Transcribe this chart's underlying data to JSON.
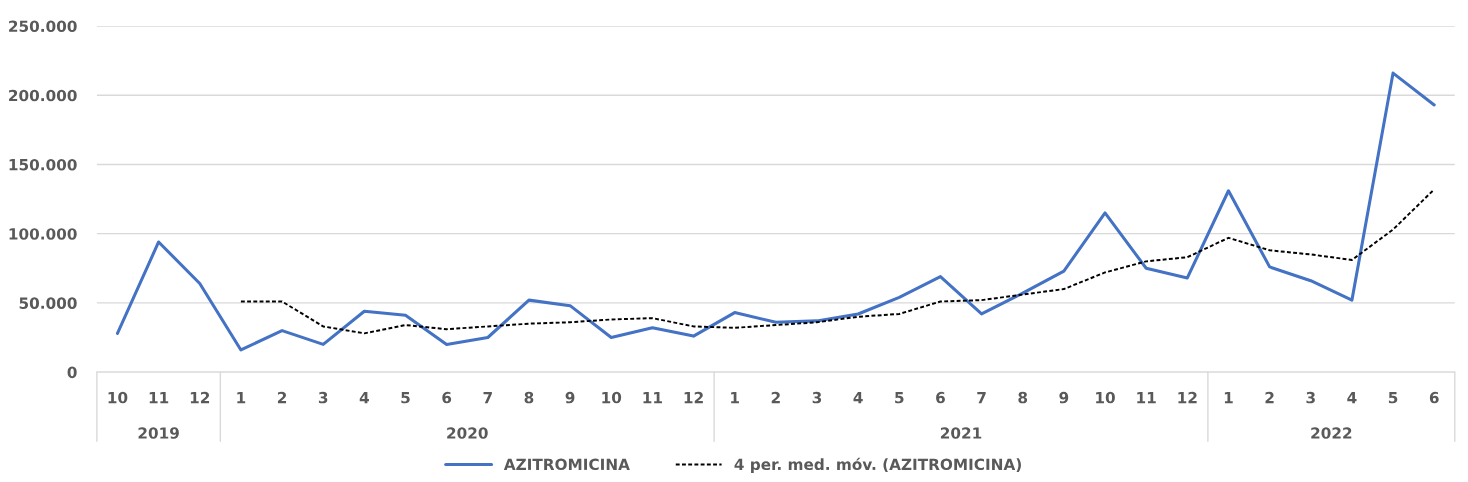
{
  "chart_data": {
    "type": "line",
    "categories": [
      "10",
      "11",
      "12",
      "1",
      "2",
      "3",
      "4",
      "5",
      "6",
      "7",
      "8",
      "9",
      "10",
      "11",
      "12",
      "1",
      "2",
      "3",
      "4",
      "5",
      "6",
      "7",
      "8",
      "9",
      "10",
      "11",
      "12",
      "1",
      "2",
      "3",
      "4",
      "5",
      "6"
    ],
    "annotations": [
      "2019",
      "2020",
      "2021",
      "2022"
    ],
    "series": [
      {
        "name": "AZITROMICINA",
        "color": "#4472c4",
        "line_style": "solid",
        "values": [
          28000,
          94000,
          64000,
          16000,
          30000,
          20000,
          44000,
          41000,
          20000,
          25000,
          52000,
          48000,
          25000,
          32000,
          26000,
          43000,
          36000,
          37000,
          42000,
          54000,
          69000,
          42000,
          57000,
          73000,
          115000,
          75000,
          68000,
          131000,
          76000,
          66000,
          52000,
          216000,
          193000
        ]
      },
      {
        "name": "4 per. med. móv. (AZITROMICINA)",
        "color": "#000000",
        "line_style": "dashed",
        "values": [
          null,
          null,
          null,
          51000,
          51000,
          33000,
          28000,
          34000,
          31000,
          33000,
          35000,
          36000,
          38000,
          39000,
          33000,
          32000,
          34000,
          36000,
          40000,
          42000,
          51000,
          52000,
          56000,
          60000,
          72000,
          80000,
          83000,
          97000,
          88000,
          85000,
          81000,
          103000,
          132000
        ]
      }
    ],
    "ylim": [
      0,
      250000
    ],
    "yticks": [
      0,
      {
        "value": 50000,
        "label": "50.000"
      },
      {
        "value": 100000,
        "label": "100.000"
      },
      {
        "value": 150000,
        "label": "150.000"
      },
      {
        "value": 200000,
        "label": "200.000"
      },
      {
        "value": 250000,
        "label": "250.000"
      }
    ],
    "grid": "y",
    "legend": "bottom",
    "marker": "none"
  }
}
